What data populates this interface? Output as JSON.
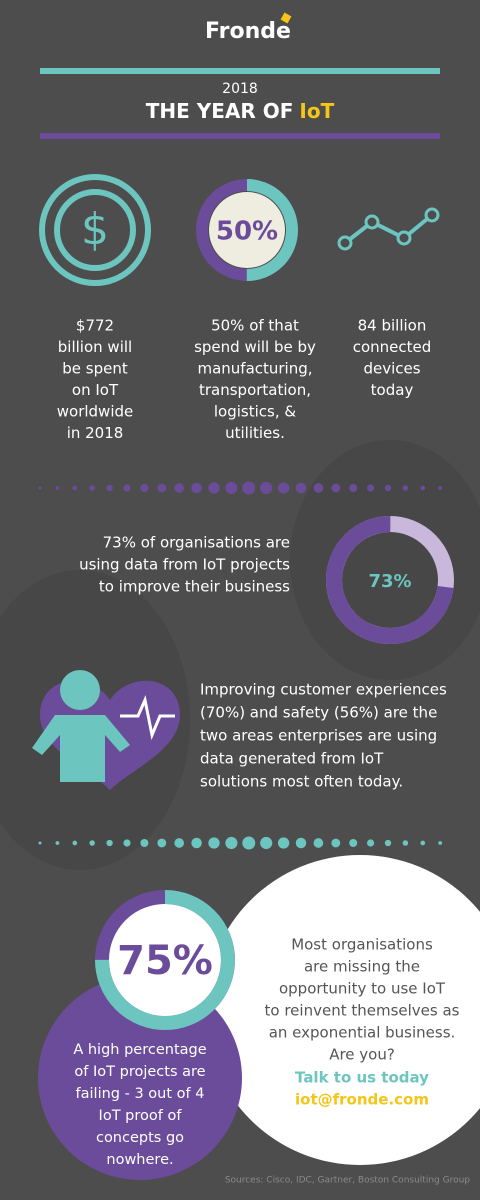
{
  "header": {
    "brand": "Fronde",
    "year": "2018",
    "title_prefix": "THE YEAR OF",
    "title_highlight": "IoT"
  },
  "stats": [
    {
      "lines": [
        "$772",
        "billion will",
        "be spent",
        "on IoT",
        "worldwide",
        "in 2018"
      ]
    },
    {
      "donut": {
        "value": 50,
        "label": "50%"
      },
      "lines": [
        "50% of that",
        "spend will be by",
        "manufacturing,",
        "transportation,",
        "logistics, &",
        "utilities."
      ]
    },
    {
      "lines": [
        "84 billion",
        "connected",
        "devices",
        "today"
      ]
    }
  ],
  "data_use": {
    "lines": [
      "73% of organisations are",
      "using data from IoT projects",
      "to improve their business"
    ],
    "donut": {
      "value": 73,
      "label": "73%"
    }
  },
  "experience": {
    "lines": [
      "Improving customer experiences",
      "(70%) and safety (56%) are the",
      "two areas enterprises are using",
      "data generated from IoT",
      "solutions most often today."
    ]
  },
  "failing": {
    "donut": {
      "value": 75,
      "label": "75%"
    },
    "lines": [
      "A high percentage",
      "of IoT projects are",
      "failing - 3 out of 4",
      "IoT proof of",
      "concepts go",
      "nowhere."
    ]
  },
  "cta": {
    "lines": [
      "Most organisations",
      "are missing the",
      "opportunity to use IoT",
      "to reinvent themselves as",
      "an exponential business.",
      "Are you?"
    ],
    "action": "Talk to us today",
    "email": "iot@fronde.com"
  },
  "footer": {
    "sources": "Sources: Cisco, IDC, Gartner, Boston Consulting Group"
  }
}
